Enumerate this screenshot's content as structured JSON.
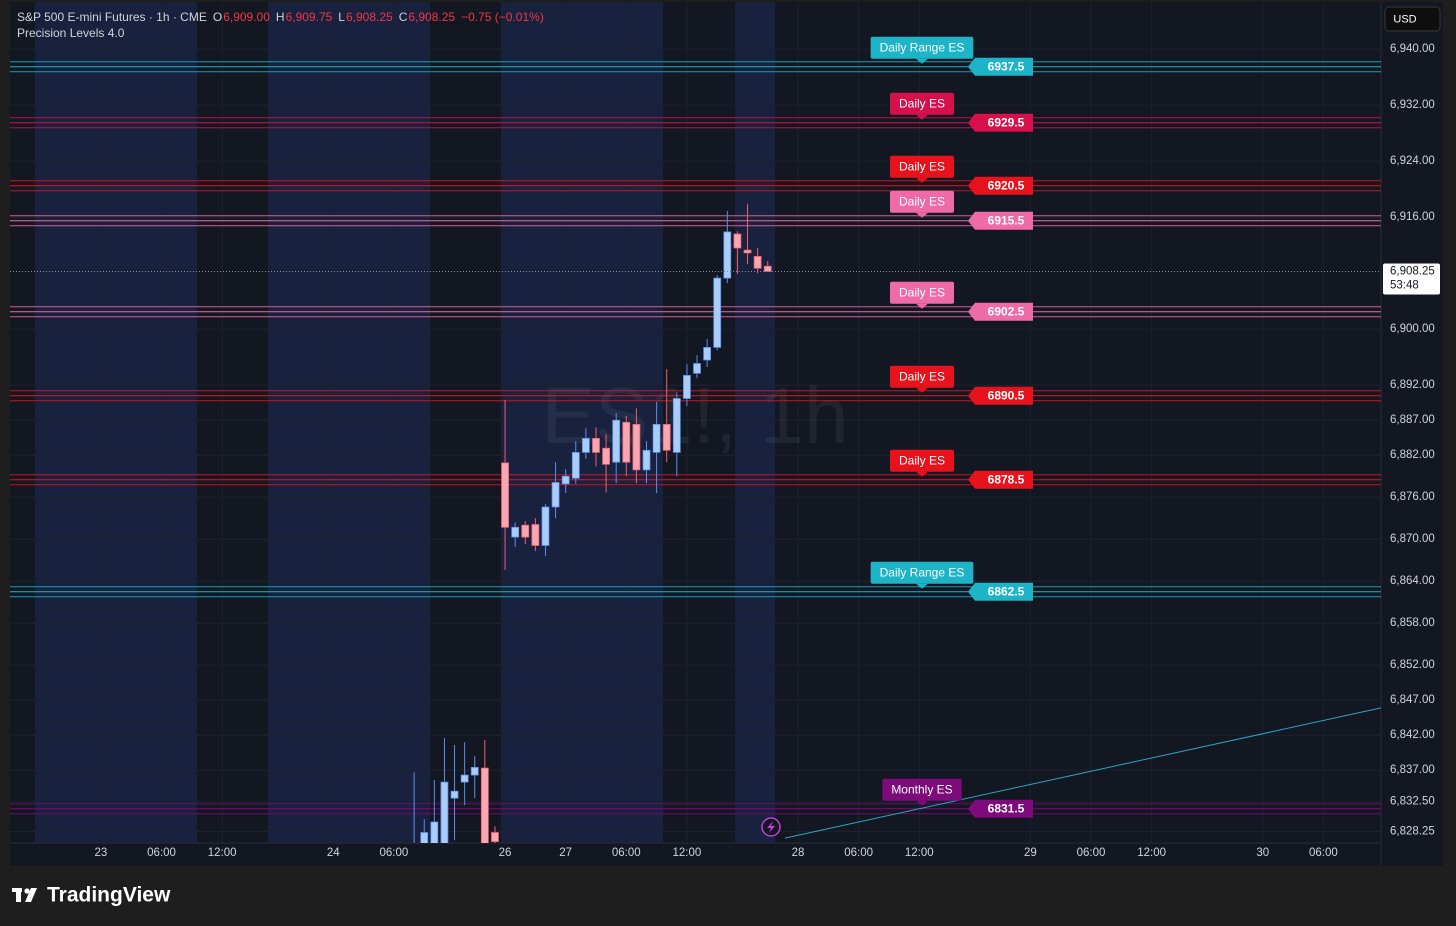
{
  "chart_data": {
    "type": "candlestick",
    "title": "S&P 500 E-mini Futures · 1h · CME",
    "subtitle": "Precision Levels 4.0",
    "watermark": "ES1!, 1h",
    "currency": "USD",
    "ohlc_legend": [
      {
        "label": "O",
        "value": "6,909.00"
      },
      {
        "label": "H",
        "value": "6,909.75"
      },
      {
        "label": "L",
        "value": "6,908.25"
      },
      {
        "label": "C",
        "value": "6,908.25"
      }
    ],
    "change": "−0.75 (−0.01%)",
    "up_color": "#a9cdf7",
    "down_color": "#f6a7b2",
    "x": [
      31,
      32,
      33,
      34,
      35,
      36,
      37,
      38,
      39,
      40,
      41,
      42,
      43,
      44,
      45,
      46,
      47,
      48,
      49,
      50,
      51,
      52,
      53,
      54,
      55,
      56,
      57,
      58,
      59,
      60,
      61,
      62,
      63,
      64,
      65,
      66
    ],
    "open": [
      6822,
      6826.4,
      6826,
      6826,
      6833,
      6835.3,
      6836.3,
      6837.3,
      6828.1,
      6880.9,
      6870.3,
      6872,
      6872.1,
      6869.1,
      6874.6,
      6877.9,
      6878.7,
      6882.4,
      6884.4,
      6883,
      6881,
      6886.7,
      6886.4,
      6879.9,
      6882.4,
      6886.4,
      6882.4,
      6890.1,
      6893.7,
      6895.6,
      6897.4,
      6907.3,
      6913.6,
      6911.3,
      6910.4,
      6909
    ],
    "high": [
      6836.7,
      6830,
      6835.6,
      6841.6,
      6840.6,
      6841,
      6839,
      6841.3,
      6829,
      6889.9,
      6872.4,
      6872.6,
      6873,
      6875,
      6881,
      6880,
      6884,
      6885.9,
      6886,
      6885,
      6888,
      6887.6,
      6888.7,
      6884,
      6889.6,
      6894.3,
      6891,
      6895,
      6896.3,
      6898.6,
      6907.7,
      6916.9,
      6914,
      6917.9,
      6911.6,
      6909.75
    ],
    "low": [
      6815,
      6820,
      6820,
      6820,
      6827,
      6832,
      6833,
      6825,
      6825,
      6865.6,
      6868.9,
      6869.3,
      6868.3,
      6867.6,
      6873,
      6876.6,
      6877.9,
      6881.5,
      6880.4,
      6876.7,
      6878,
      6879,
      6878,
      6878,
      6876.6,
      6881,
      6879,
      6889,
      6893,
      6894.6,
      6897,
      6906.6,
      6907.9,
      6909.3,
      6908,
      6908.25
    ],
    "close": [
      6825,
      6828.1,
      6829.6,
      6835.3,
      6834,
      6836.3,
      6837.4,
      6826,
      6826.8,
      6871.7,
      6871.7,
      6870.3,
      6869.1,
      6874.6,
      6878.1,
      6879,
      6882.4,
      6884.4,
      6882.4,
      6880.7,
      6887,
      6881,
      6879.9,
      6882.7,
      6886.4,
      6882.7,
      6890.1,
      6893.4,
      6895.1,
      6897.4,
      6907.3,
      6913.9,
      6911.6,
      6910.9,
      6908.7,
      6908.25
    ],
    "xlim": [
      -9,
      126.7
    ],
    "ylim": [
      6826.6,
      6945.6
    ],
    "grid": true,
    "xticks": [
      {
        "value": 0,
        "label": "23"
      },
      {
        "value": 6,
        "label": "06:00"
      },
      {
        "value": 12,
        "label": "12:00"
      },
      {
        "value": 23,
        "label": "24"
      },
      {
        "value": 29,
        "label": "06:00"
      },
      {
        "value": 40,
        "label": "26"
      },
      {
        "value": 46,
        "label": "27"
      },
      {
        "value": 52,
        "label": "06:00"
      },
      {
        "value": 58,
        "label": "12:00"
      },
      {
        "value": 69,
        "label": "28"
      },
      {
        "value": 75,
        "label": "06:00"
      },
      {
        "value": 81,
        "label": "12:00"
      },
      {
        "value": 92,
        "label": "29"
      },
      {
        "value": 98,
        "label": "06:00"
      },
      {
        "value": 104,
        "label": "12:00"
      },
      {
        "value": 115,
        "label": "30"
      },
      {
        "value": 121,
        "label": "06:00"
      }
    ],
    "yticks": [
      {
        "value": 6940,
        "label": "6,940.00"
      },
      {
        "value": 6932,
        "label": "6,932.00"
      },
      {
        "value": 6924,
        "label": "6,924.00"
      },
      {
        "value": 6916,
        "label": "6,916.00"
      },
      {
        "value": 6900,
        "label": "6,900.00"
      },
      {
        "value": 6892,
        "label": "6,892.00"
      },
      {
        "value": 6887,
        "label": "6,887.00"
      },
      {
        "value": 6882,
        "label": "6,882.00"
      },
      {
        "value": 6876,
        "label": "6,876.00"
      },
      {
        "value": 6870,
        "label": "6,870.00"
      },
      {
        "value": 6864,
        "label": "6,864.00"
      },
      {
        "value": 6858,
        "label": "6,858.00"
      },
      {
        "value": 6852,
        "label": "6,852.00"
      },
      {
        "value": 6847,
        "label": "6,847.00"
      },
      {
        "value": 6842,
        "label": "6,842.00"
      },
      {
        "value": 6837,
        "label": "6,837.00"
      },
      {
        "value": 6832.5,
        "label": "6,832.50"
      },
      {
        "value": 6828.25,
        "label": "6,828.25"
      }
    ],
    "last_price": {
      "value": 6908.25,
      "label": "6,908.25",
      "countdown": "53:48"
    },
    "levels": [
      {
        "name": "Daily Range ES",
        "value": 6937.5,
        "color": "#1db4c8"
      },
      {
        "name": "Daily ES",
        "value": 6929.5,
        "color": "#d5104b"
      },
      {
        "name": "Daily ES",
        "value": 6920.5,
        "color": "#e8121c"
      },
      {
        "name": "Daily ES",
        "value": 6915.5,
        "color": "#ef6ba7"
      },
      {
        "name": "Daily ES",
        "value": 6902.5,
        "color": "#ef6ba7"
      },
      {
        "name": "Daily ES",
        "value": 6890.5,
        "color": "#e8121c"
      },
      {
        "name": "Daily ES",
        "value": 6878.5,
        "color": "#e8121c"
      },
      {
        "name": "Daily Range ES",
        "value": 6862.5,
        "color": "#1db4c8"
      },
      {
        "name": "Monthly ES",
        "value": 6831.5,
        "color": "#7d0b7b"
      }
    ],
    "trend_line": {
      "x": [
        67.7,
        126.7
      ],
      "y": [
        6827.3,
        6845.9
      ],
      "color": "#2aa6c4"
    }
  },
  "brand": "TradingView"
}
